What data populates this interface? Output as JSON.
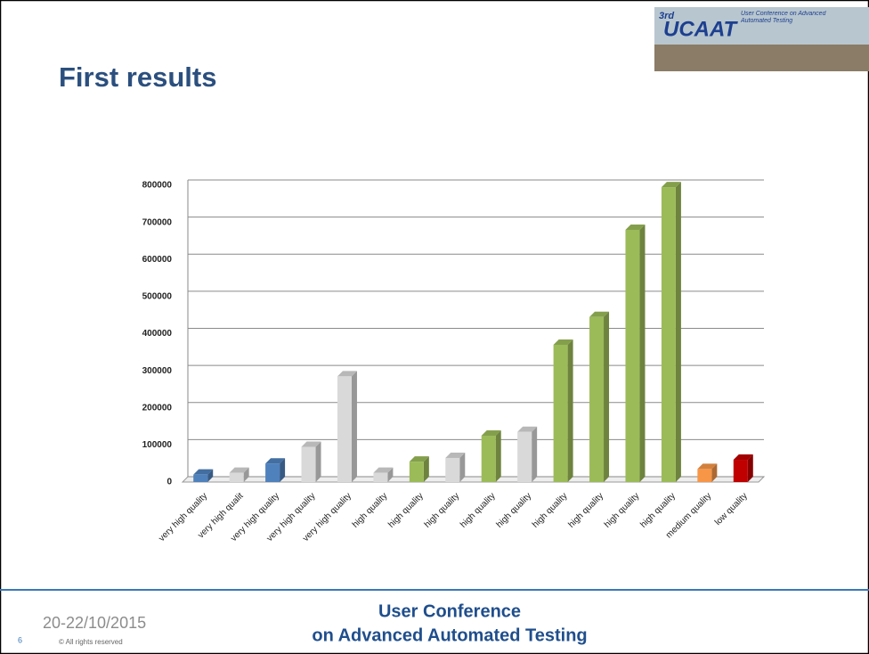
{
  "slide": {
    "title": "First results",
    "logo": {
      "edition": "3rd",
      "name": "UCAAT",
      "subtitle": "User Conference on Advanced Automated Testing"
    },
    "footer": {
      "date": "20-22/10/2015",
      "page": "6",
      "rights": "© All rights reserved",
      "conference_line1": "User Conference",
      "conference_line2": "on Advanced Automated Testing"
    }
  },
  "chart_data": {
    "type": "bar3d",
    "categories": [
      "very high quality",
      "very high qualit",
      "very high quality",
      "very high quality",
      "very high quality",
      "high quality",
      "high quality",
      "high quality",
      "high quality",
      "high quality",
      "high quality",
      "high quality",
      "high quality",
      "high quality",
      "medium quality",
      "low quality"
    ],
    "values": [
      20000,
      25000,
      50000,
      95000,
      285000,
      25000,
      55000,
      65000,
      125000,
      135000,
      370000,
      445000,
      680000,
      795000,
      35000,
      60000
    ],
    "colors": [
      "#4f81bd",
      "#d9d9d9",
      "#4f81bd",
      "#d9d9d9",
      "#d9d9d9",
      "#d9d9d9",
      "#9bbb59",
      "#d9d9d9",
      "#9bbb59",
      "#d9d9d9",
      "#9bbb59",
      "#9bbb59",
      "#9bbb59",
      "#9bbb59",
      "#f79646",
      "#c00000"
    ],
    "ylim": [
      0,
      800000
    ],
    "yticks": [
      0,
      100000,
      200000,
      300000,
      400000,
      500000,
      600000,
      700000,
      800000
    ],
    "grid": true
  }
}
